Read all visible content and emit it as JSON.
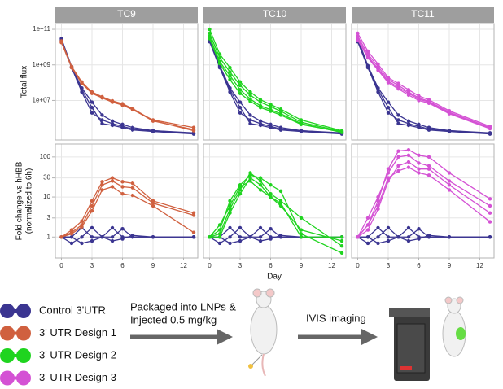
{
  "chart_data": {
    "type": "line",
    "log_y": true,
    "grid": true,
    "facets": [
      "TC9",
      "TC10",
      "TC11"
    ],
    "x": [
      0,
      1,
      2,
      3,
      4,
      5,
      6,
      7,
      9,
      13
    ],
    "xlim": [
      -0.6,
      13.4
    ],
    "xticks": [
      0,
      3,
      6,
      9,
      12
    ],
    "xlabel": "Day",
    "rows": [
      {
        "ylabel": [
          "Total flux"
        ],
        "ylim": [
          60000,
          210000000000
        ],
        "yticks": [
          {
            "value": 10000000,
            "label": "1e+07"
          },
          {
            "value": 1000000000,
            "label": "1e+09"
          },
          {
            "value": 100000000000,
            "label": "1e+11"
          }
        ],
        "panels": [
          {
            "series": [
              {
                "color": "#3b3591",
                "values": [
                  30000000000,
                  800000000,
                  50000000,
                  8000000,
                  1500000,
                  700000,
                  450000,
                  300000,
                  200000,
                  150000
                ]
              },
              {
                "color": "#3b3591",
                "values": [
                  20000000000,
                  700000000,
                  30000000,
                  2000000,
                  800000,
                  500000,
                  350000,
                  250000,
                  200000,
                  140000
                ]
              },
              {
                "color": "#3b3591",
                "values": [
                  25000000000,
                  750000000,
                  40000000,
                  4000000,
                  500000,
                  400000,
                  300000,
                  220000,
                  180000,
                  130000
                ]
              },
              {
                "color": "#d0603f",
                "values": [
                  20000000000,
                  800000000,
                  110000000,
                  28000000,
                  15000000,
                  9000000,
                  6000000,
                  3200000,
                  700000,
                  230000
                ]
              },
              {
                "color": "#d0603f",
                "values": [
                  18000000000,
                  700000000,
                  90000000,
                  25000000,
                  14000000,
                  8000000,
                  5500000,
                  3000000,
                  800000,
                  300000
                ]
              },
              {
                "color": "#d0603f",
                "values": [
                  22000000000,
                  750000000,
                  100000000,
                  30000000,
                  16000000,
                  9500000,
                  6500000,
                  3500000,
                  750000,
                  200000
                ]
              }
            ]
          },
          {
            "series": [
              {
                "color": "#3b3591",
                "values": [
                  30000000000,
                  900000000,
                  50000000,
                  8000000,
                  1500000,
                  700000,
                  450000,
                  300000,
                  200000,
                  150000
                ]
              },
              {
                "color": "#3b3591",
                "values": [
                  20000000000,
                  700000000,
                  30000000,
                  2000000,
                  800000,
                  500000,
                  350000,
                  250000,
                  200000,
                  140000
                ]
              },
              {
                "color": "#3b3591",
                "values": [
                  25000000000,
                  800000000,
                  40000000,
                  4000000,
                  500000,
                  400000,
                  300000,
                  220000,
                  180000,
                  130000
                ]
              },
              {
                "color": "#1fd41f",
                "values": [
                  100000000000,
                  4000000000,
                  700000000,
                  110000000,
                  30000000,
                  11000000,
                  6000000,
                  3200000,
                  800000,
                  200000
                ]
              },
              {
                "color": "#1fd41f",
                "values": [
                  60000000000,
                  2500000000,
                  400000000,
                  70000000,
                  20000000,
                  8000000,
                  4500000,
                  2500000,
                  600000,
                  180000
                ]
              },
              {
                "color": "#1fd41f",
                "values": [
                  40000000000,
                  1500000000,
                  250000000,
                  40000000,
                  12000000,
                  5000000,
                  3000000,
                  1800000,
                  500000,
                  160000
                ]
              },
              {
                "color": "#1fd41f",
                "values": [
                  30000000000,
                  1200000000,
                  150000000,
                  25000000,
                  9000000,
                  4000000,
                  2500000,
                  1500000,
                  450000,
                  170000
                ]
              }
            ]
          },
          {
            "series": [
              {
                "color": "#3b3591",
                "values": [
                  30000000000,
                  900000000,
                  50000000,
                  8000000,
                  1500000,
                  700000,
                  450000,
                  300000,
                  200000,
                  150000
                ]
              },
              {
                "color": "#3b3591",
                "values": [
                  20000000000,
                  700000000,
                  30000000,
                  2000000,
                  800000,
                  500000,
                  350000,
                  250000,
                  200000,
                  140000
                ]
              },
              {
                "color": "#3b3591",
                "values": [
                  25000000000,
                  800000000,
                  40000000,
                  4000000,
                  500000,
                  400000,
                  300000,
                  220000,
                  180000,
                  130000
                ]
              },
              {
                "color": "#d452d4",
                "values": [
                  60000000000,
                  5900000000,
                  1100000000,
                  190000000,
                  90000000,
                  40000000,
                  18000000,
                  11000000,
                  2600000,
                  350000
                ]
              },
              {
                "color": "#d452d4",
                "values": [
                  40000000000,
                  4000000000,
                  800000000,
                  150000000,
                  70000000,
                  30000000,
                  14000000,
                  9000000,
                  2200000,
                  300000
                ]
              },
              {
                "color": "#d452d4",
                "values": [
                  30000000000,
                  3000000000,
                  600000000,
                  120000000,
                  55000000,
                  25000000,
                  12000000,
                  8000000,
                  2000000,
                  280000
                ]
              },
              {
                "color": "#d452d4",
                "values": [
                  25000000000,
                  2500000000,
                  500000000,
                  100000000,
                  45000000,
                  20000000,
                  10000000,
                  7000000,
                  1800000,
                  260000
                ]
              }
            ]
          }
        ]
      },
      {
        "ylabel": [
          "Fold change vs hHBB",
          "(normalized to 6h)"
        ],
        "ylim": [
          0.3,
          210
        ],
        "yticks": [
          1,
          3,
          10,
          30,
          100
        ],
        "panels": [
          {
            "series": [
              {
                "color": "#3b3591",
                "values": [
                  1,
                  1,
                  1.7,
                  1,
                  1,
                  1.7,
                  1,
                  1,
                  1,
                  1
                ]
              },
              {
                "color": "#3b3591",
                "values": [
                  1,
                  0.7,
                  1,
                  1.7,
                  1,
                  1,
                  1.6,
                  1,
                  1,
                  1
                ]
              },
              {
                "color": "#3b3591",
                "values": [
                  1,
                  1,
                  0.7,
                  0.8,
                  1,
                  0.8,
                  0.9,
                  1.1,
                  1,
                  1
                ]
              },
              {
                "color": "#d0603f",
                "values": [
                  1,
                  1.3,
                  2,
                  6,
                  20,
                  25,
                  18,
                  17,
                  7,
                  3.5
                ]
              },
              {
                "color": "#d0603f",
                "values": [
                  1,
                  1.5,
                  2.5,
                  8,
                  24,
                  30,
                  24,
                  22,
                  8,
                  4
                ]
              },
              {
                "color": "#d0603f",
                "values": [
                  1,
                  1.2,
                  1.8,
                  4.5,
                  15,
                  18,
                  12,
                  11,
                  6,
                  1.3
                ]
              }
            ]
          },
          {
            "series": [
              {
                "color": "#3b3591",
                "values": [
                  1,
                  1,
                  1.7,
                  1,
                  1,
                  1.7,
                  1,
                  1,
                  1,
                  1
                ]
              },
              {
                "color": "#3b3591",
                "values": [
                  1,
                  0.7,
                  1,
                  1.7,
                  1,
                  1,
                  1.6,
                  1,
                  1,
                  1
                ]
              },
              {
                "color": "#3b3591",
                "values": [
                  1,
                  1,
                  0.7,
                  0.8,
                  1,
                  0.8,
                  0.9,
                  1.1,
                  1,
                  1
                ]
              },
              {
                "color": "#1fd41f",
                "values": [
                  1,
                  1.2,
                  5,
                  15,
                  40,
                  25,
                  12,
                  8,
                  3,
                  0.6
                ]
              },
              {
                "color": "#1fd41f",
                "values": [
                  1,
                  1.5,
                  8,
                  20,
                  35,
                  30,
                  20,
                  14,
                  1.2,
                  0.4
                ]
              },
              {
                "color": "#1fd41f",
                "values": [
                  1,
                  1,
                  4,
                  12,
                  30,
                  20,
                  10,
                  7,
                  1,
                  1
                ]
              },
              {
                "color": "#1fd41f",
                "values": [
                  1,
                  2,
                  6,
                  18,
                  25,
                  15,
                  10,
                  6,
                  1.5,
                  0.8
                ]
              }
            ]
          },
          {
            "series": [
              {
                "color": "#3b3591",
                "values": [
                  1,
                  1,
                  1.7,
                  1,
                  1,
                  1.7,
                  1,
                  1,
                  1,
                  1
                ]
              },
              {
                "color": "#3b3591",
                "values": [
                  1,
                  0.7,
                  1,
                  1.7,
                  1,
                  1,
                  1.6,
                  1,
                  1,
                  1
                ]
              },
              {
                "color": "#3b3591",
                "values": [
                  1,
                  1,
                  0.7,
                  0.8,
                  1,
                  0.8,
                  0.9,
                  1.1,
                  1,
                  1
                ]
              },
              {
                "color": "#d452d4",
                "values": [
                  1,
                  2,
                  8,
                  50,
                  140,
                  150,
                  110,
                  100,
                  40,
                  9
                ]
              },
              {
                "color": "#d452d4",
                "values": [
                  1,
                  3,
                  10,
                  40,
                  100,
                  110,
                  70,
                  60,
                  25,
                  6
                ]
              },
              {
                "color": "#d452d4",
                "values": [
                  1,
                  1.5,
                  5,
                  25,
                  60,
                  75,
                  50,
                  50,
                  20,
                  4
                ]
              },
              {
                "color": "#d452d4",
                "values": [
                  1,
                  2,
                  6,
                  30,
                  45,
                  55,
                  40,
                  35,
                  15,
                  2.4
                ]
              }
            ]
          }
        ]
      }
    ],
    "legend": [
      {
        "name": "Control 3'UTR",
        "color": "#3b3591"
      },
      {
        "name": "3' UTR Design 1",
        "color": "#d0603f"
      },
      {
        "name": "3' UTR Design 2",
        "color": "#1fd41f"
      },
      {
        "name": "3' UTR Design 3",
        "color": "#d452d4"
      }
    ]
  },
  "workflow": {
    "step1": [
      "Packaged into LNPs &",
      "Injected 0.5 mg/kg"
    ],
    "step2": "IVIS imaging"
  }
}
